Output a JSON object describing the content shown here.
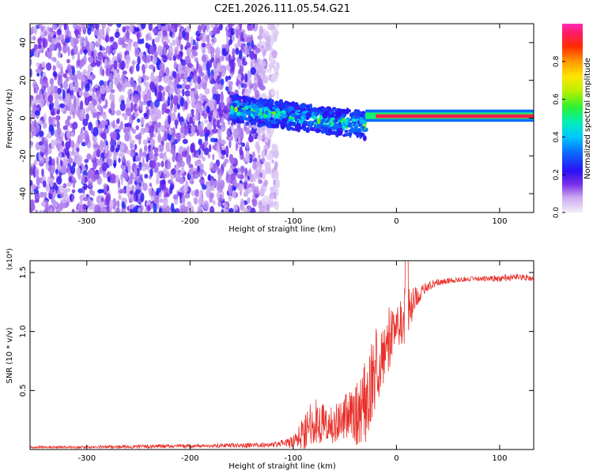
{
  "title": "C2E1.2026.111.05.54.G21",
  "chart_data": [
    {
      "type": "heatmap",
      "xlabel": "Height of straight line (km)",
      "ylabel": "Frequency (Hz)",
      "xlim": [
        -355,
        133
      ],
      "ylim": [
        -50,
        50
      ],
      "xticks": [
        -300,
        -200,
        -100,
        0,
        100
      ],
      "xtick_labels": [
        "-300",
        "-200",
        "-100",
        "0",
        "100"
      ],
      "yticks": [
        -40,
        -20,
        0,
        20,
        40
      ],
      "ytick_labels": [
        "-40",
        "-20",
        "0",
        "20",
        "40"
      ],
      "colorbar": {
        "label": "Normalized spectral amplitude",
        "range": [
          0,
          1
        ],
        "ticks": [
          0.0,
          0.2,
          0.4,
          0.6,
          0.8
        ],
        "tick_labels": [
          "0.0",
          "0.2",
          "0.4",
          "0.6",
          "0.8"
        ]
      },
      "regions": [
        {
          "x_from": -355,
          "x_to": -115,
          "f_from": -50,
          "f_to": 50,
          "level": 0.15
        },
        {
          "x_from": -160,
          "x_to": -30,
          "f_from": -10,
          "f_to": 10,
          "level": 0.45
        },
        {
          "x_from": -30,
          "x_to": 133,
          "f_from": 0,
          "f_to": 2,
          "level": 1.0
        }
      ]
    },
    {
      "type": "line",
      "xlabel": "Height of straight line (km)",
      "ylabel": "SNR (10 * v/v)",
      "multiplier": "(x10⁴)",
      "xlim": [
        -355,
        133
      ],
      "ylim": [
        0,
        1.6
      ],
      "xticks": [
        -300,
        -200,
        -100,
        0,
        100
      ],
      "xtick_labels": [
        "-300",
        "-200",
        "-100",
        "0",
        "100"
      ],
      "yticks": [
        0.5,
        1.0,
        1.5
      ],
      "ytick_labels": [
        "0.5",
        "1.0",
        "1.5"
      ],
      "color": "#e8312a",
      "series": [
        {
          "x": [
            -355,
            -300,
            -250,
            -200,
            -150,
            -120,
            -100,
            -90,
            -80,
            -70,
            -60,
            -50,
            -40,
            -30,
            -20,
            -10,
            0,
            10,
            20,
            30,
            40,
            60,
            80,
            100,
            120,
            133
          ],
          "y": [
            0.02,
            0.02,
            0.025,
            0.03,
            0.035,
            0.04,
            0.06,
            0.15,
            0.25,
            0.22,
            0.2,
            0.3,
            0.28,
            0.4,
            0.7,
            0.9,
            1.05,
            1.15,
            1.3,
            1.38,
            1.42,
            1.44,
            1.45,
            1.45,
            1.46,
            1.45
          ],
          "spread": [
            0.01,
            0.01,
            0.015,
            0.015,
            0.02,
            0.02,
            0.05,
            0.15,
            0.2,
            0.18,
            0.18,
            0.2,
            0.25,
            0.35,
            0.35,
            0.3,
            0.2,
            0.25,
            0.08,
            0.04,
            0.03,
            0.02,
            0.02,
            0.03,
            0.03,
            0.02
          ]
        }
      ]
    }
  ]
}
